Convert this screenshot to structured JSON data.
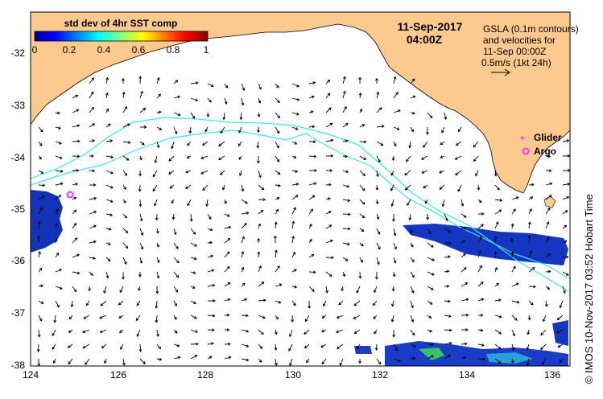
{
  "colorbar": {
    "title": "std dev of 4hr SST comp",
    "ticks": [
      "0",
      "0.2",
      "0.4",
      "0.6",
      "0.8",
      "1"
    ]
  },
  "date": {
    "day": "11-Sep-2017",
    "time": "04:00Z"
  },
  "gsla_info": {
    "line1": "GSLA (0.1m contours)",
    "line2": "and velocities for",
    "line3": "11-Sep 00:00Z",
    "line4": "0.5m/s (1kt 24h)"
  },
  "legend": {
    "glider": "Glider",
    "argo": "Argo"
  },
  "credit": "© IMOS 10-Nov-2017 03:52 Hobart Time",
  "axes": {
    "x_ticks": [
      "124",
      "126",
      "128",
      "130",
      "132",
      "134",
      "136"
    ],
    "y_ticks": [
      "-32",
      "-33",
      "-34",
      "-35",
      "-36",
      "-37",
      "-38"
    ]
  },
  "colors": {
    "land": "#fcc98f",
    "contour": "#38e8f0",
    "argo": "#ff33ff"
  }
}
